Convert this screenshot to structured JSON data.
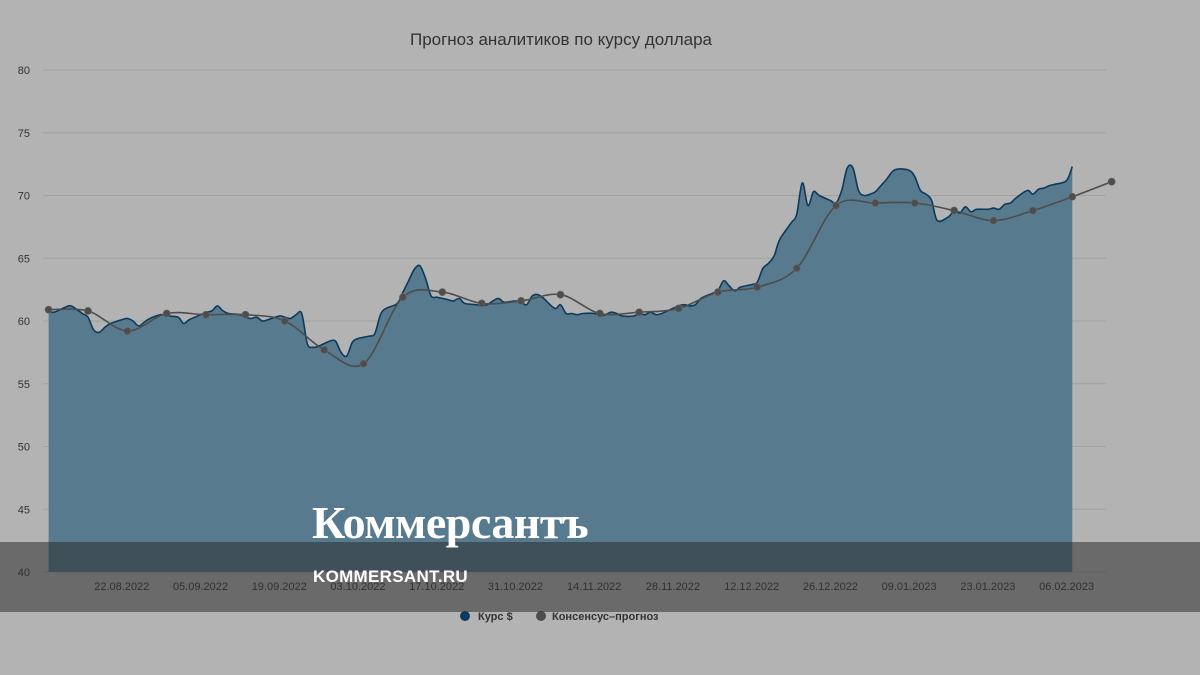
{
  "chart_data": {
    "type": "area",
    "title": "Прогноз аналитиков по курсу доллара",
    "ylim": [
      40,
      80
    ],
    "y_ticks": [
      "40",
      "45",
      "50",
      "55",
      "60",
      "65",
      "70",
      "75",
      "80"
    ],
    "x_range": [
      "2022-08-08",
      "2023-02-13"
    ],
    "x_ticks": [
      {
        "date": "2022-08-22",
        "label": "22.08.2022"
      },
      {
        "date": "2022-09-05",
        "label": "05.09.2022"
      },
      {
        "date": "2022-09-19",
        "label": "19.09.2022"
      },
      {
        "date": "2022-10-03",
        "label": "03.10.2022"
      },
      {
        "date": "2022-10-17",
        "label": "17.10.2022"
      },
      {
        "date": "2022-10-31",
        "label": "31.10.2022"
      },
      {
        "date": "2022-11-14",
        "label": "14.11.2022"
      },
      {
        "date": "2022-11-28",
        "label": "28.11.2022"
      },
      {
        "date": "2022-12-12",
        "label": "12.12.2022"
      },
      {
        "date": "2022-12-26",
        "label": "26.12.2022"
      },
      {
        "date": "2023-01-09",
        "label": "09.01.2023"
      },
      {
        "date": "2023-01-23",
        "label": "23.01.2023"
      },
      {
        "date": "2023-02-06",
        "label": "06.02.2023"
      }
    ],
    "grid": true,
    "legend_position": "bottom-center",
    "series": [
      {
        "name": "Курс $",
        "kind": "area",
        "color": "#0b3a5c",
        "fill": "#587a8e",
        "points": [
          [
            "2022-08-09",
            60.7
          ],
          [
            "2022-08-10",
            60.7
          ],
          [
            "2022-08-11",
            60.9
          ],
          [
            "2022-08-12",
            61.1
          ],
          [
            "2022-08-13",
            61.2
          ],
          [
            "2022-08-15",
            60.6
          ],
          [
            "2022-08-16",
            60.3
          ],
          [
            "2022-08-17",
            59.3
          ],
          [
            "2022-08-18",
            59.1
          ],
          [
            "2022-08-19",
            59.5
          ],
          [
            "2022-08-20",
            59.8
          ],
          [
            "2022-08-22",
            60.1
          ],
          [
            "2022-08-23",
            60.2
          ],
          [
            "2022-08-24",
            60.0
          ],
          [
            "2022-08-25",
            59.6
          ],
          [
            "2022-08-26",
            59.9
          ],
          [
            "2022-08-27",
            60.2
          ],
          [
            "2022-08-29",
            60.5
          ],
          [
            "2022-08-30",
            60.4
          ],
          [
            "2022-09-01",
            60.3
          ],
          [
            "2022-09-02",
            59.8
          ],
          [
            "2022-09-03",
            60.1
          ],
          [
            "2022-09-05",
            60.5
          ],
          [
            "2022-09-06",
            60.7
          ],
          [
            "2022-09-07",
            60.8
          ],
          [
            "2022-09-08",
            61.2
          ],
          [
            "2022-09-09",
            60.8
          ],
          [
            "2022-09-10",
            60.6
          ],
          [
            "2022-09-12",
            60.5
          ],
          [
            "2022-09-13",
            60.3
          ],
          [
            "2022-09-14",
            60.2
          ],
          [
            "2022-09-15",
            60.3
          ],
          [
            "2022-09-16",
            60.0
          ],
          [
            "2022-09-17",
            60.1
          ],
          [
            "2022-09-19",
            60.4
          ],
          [
            "2022-09-20",
            60.3
          ],
          [
            "2022-09-21",
            60.2
          ],
          [
            "2022-09-22",
            60.5
          ],
          [
            "2022-09-23",
            60.6
          ],
          [
            "2022-09-24",
            58.2
          ],
          [
            "2022-09-25",
            57.9
          ],
          [
            "2022-09-26",
            58.0
          ],
          [
            "2022-09-27",
            58.2
          ],
          [
            "2022-09-28",
            58.4
          ],
          [
            "2022-09-29",
            58.4
          ],
          [
            "2022-09-30",
            57.5
          ],
          [
            "2022-10-01",
            57.2
          ],
          [
            "2022-10-02",
            58.3
          ],
          [
            "2022-10-03",
            58.6
          ],
          [
            "2022-10-04",
            58.7
          ],
          [
            "2022-10-05",
            58.8
          ],
          [
            "2022-10-06",
            59.0
          ],
          [
            "2022-10-07",
            60.5
          ],
          [
            "2022-10-08",
            61.0
          ],
          [
            "2022-10-10",
            61.4
          ],
          [
            "2022-10-11",
            62.3
          ],
          [
            "2022-10-12",
            63.2
          ],
          [
            "2022-10-13",
            64.1
          ],
          [
            "2022-10-14",
            64.4
          ],
          [
            "2022-10-15",
            63.4
          ],
          [
            "2022-10-16",
            62.0
          ],
          [
            "2022-10-17",
            61.9
          ],
          [
            "2022-10-18",
            61.8
          ],
          [
            "2022-10-19",
            61.7
          ],
          [
            "2022-10-20",
            61.6
          ],
          [
            "2022-10-21",
            61.8
          ],
          [
            "2022-10-22",
            61.4
          ],
          [
            "2022-10-24",
            61.3
          ],
          [
            "2022-10-25",
            61.2
          ],
          [
            "2022-10-26",
            61.3
          ],
          [
            "2022-10-27",
            61.6
          ],
          [
            "2022-10-28",
            61.8
          ],
          [
            "2022-10-29",
            61.5
          ],
          [
            "2022-10-31",
            61.6
          ],
          [
            "2022-11-01",
            61.5
          ],
          [
            "2022-11-02",
            61.3
          ],
          [
            "2022-11-03",
            62.0
          ],
          [
            "2022-11-04",
            62.1
          ],
          [
            "2022-11-05",
            61.8
          ],
          [
            "2022-11-07",
            61.0
          ],
          [
            "2022-11-08",
            61.3
          ],
          [
            "2022-11-09",
            60.6
          ],
          [
            "2022-11-10",
            60.6
          ],
          [
            "2022-11-11",
            60.5
          ],
          [
            "2022-11-12",
            60.6
          ],
          [
            "2022-11-14",
            60.6
          ],
          [
            "2022-11-15",
            60.4
          ],
          [
            "2022-11-16",
            60.5
          ],
          [
            "2022-11-17",
            60.7
          ],
          [
            "2022-11-18",
            60.6
          ],
          [
            "2022-11-19",
            60.4
          ],
          [
            "2022-11-21",
            60.4
          ],
          [
            "2022-11-22",
            60.6
          ],
          [
            "2022-11-23",
            60.5
          ],
          [
            "2022-11-24",
            60.7
          ],
          [
            "2022-11-25",
            60.5
          ],
          [
            "2022-11-26",
            60.6
          ],
          [
            "2022-11-28",
            61.0
          ],
          [
            "2022-11-29",
            61.2
          ],
          [
            "2022-11-30",
            61.3
          ],
          [
            "2022-12-01",
            61.2
          ],
          [
            "2022-12-02",
            61.3
          ],
          [
            "2022-12-03",
            61.8
          ],
          [
            "2022-12-05",
            62.2
          ],
          [
            "2022-12-06",
            62.4
          ],
          [
            "2022-12-07",
            63.2
          ],
          [
            "2022-12-08",
            62.8
          ],
          [
            "2022-12-09",
            62.4
          ],
          [
            "2022-12-10",
            62.7
          ],
          [
            "2022-12-12",
            62.9
          ],
          [
            "2022-12-13",
            63.1
          ],
          [
            "2022-12-14",
            64.2
          ],
          [
            "2022-12-15",
            64.6
          ],
          [
            "2022-12-16",
            65.2
          ],
          [
            "2022-12-17",
            66.5
          ],
          [
            "2022-12-19",
            67.8
          ],
          [
            "2022-12-20",
            68.5
          ],
          [
            "2022-12-21",
            71.0
          ],
          [
            "2022-12-22",
            69.2
          ],
          [
            "2022-12-23",
            70.3
          ],
          [
            "2022-12-24",
            70.0
          ],
          [
            "2022-12-26",
            69.6
          ],
          [
            "2022-12-27",
            69.4
          ],
          [
            "2022-12-28",
            70.4
          ],
          [
            "2022-12-29",
            72.2
          ],
          [
            "2022-12-30",
            72.2
          ],
          [
            "2022-12-31",
            70.4
          ],
          [
            "2023-01-01",
            70.0
          ],
          [
            "2023-01-02",
            70.1
          ],
          [
            "2023-01-03",
            70.3
          ],
          [
            "2023-01-04",
            70.8
          ],
          [
            "2023-01-05",
            71.3
          ],
          [
            "2023-01-06",
            71.9
          ],
          [
            "2023-01-07",
            72.1
          ],
          [
            "2023-01-09",
            72.0
          ],
          [
            "2023-01-10",
            71.5
          ],
          [
            "2023-01-11",
            70.4
          ],
          [
            "2023-01-12",
            70.1
          ],
          [
            "2023-01-13",
            69.6
          ],
          [
            "2023-01-14",
            68.0
          ],
          [
            "2023-01-16",
            68.3
          ],
          [
            "2023-01-17",
            68.8
          ],
          [
            "2023-01-18",
            68.6
          ],
          [
            "2023-01-19",
            69.1
          ],
          [
            "2023-01-20",
            68.7
          ],
          [
            "2023-01-21",
            68.9
          ],
          [
            "2023-01-23",
            68.9
          ],
          [
            "2023-01-24",
            69.0
          ],
          [
            "2023-01-25",
            68.9
          ],
          [
            "2023-01-26",
            69.3
          ],
          [
            "2023-01-27",
            69.4
          ],
          [
            "2023-01-28",
            69.8
          ],
          [
            "2023-01-30",
            70.4
          ],
          [
            "2023-01-31",
            70.1
          ],
          [
            "2023-02-01",
            70.5
          ],
          [
            "2023-02-02",
            70.6
          ],
          [
            "2023-02-03",
            70.8
          ],
          [
            "2023-02-04",
            70.9
          ],
          [
            "2023-02-06",
            71.2
          ],
          [
            "2023-02-07",
            72.3
          ]
        ]
      },
      {
        "name": "Консенсус–прогноз",
        "kind": "line",
        "color": "#4d4d4d",
        "points": [
          [
            "2022-08-09",
            60.9
          ],
          [
            "2022-08-16",
            60.8
          ],
          [
            "2022-08-23",
            59.2
          ],
          [
            "2022-08-30",
            60.6
          ],
          [
            "2022-09-06",
            60.5
          ],
          [
            "2022-09-13",
            60.5
          ],
          [
            "2022-09-20",
            60.0
          ],
          [
            "2022-09-27",
            57.7
          ],
          [
            "2022-10-04",
            56.6
          ],
          [
            "2022-10-11",
            61.9
          ],
          [
            "2022-10-18",
            62.3
          ],
          [
            "2022-10-25",
            61.4
          ],
          [
            "2022-11-01",
            61.6
          ],
          [
            "2022-11-08",
            62.1
          ],
          [
            "2022-11-15",
            60.6
          ],
          [
            "2022-11-22",
            60.7
          ],
          [
            "2022-11-29",
            61.0
          ],
          [
            "2022-12-06",
            62.3
          ],
          [
            "2022-12-13",
            62.7
          ],
          [
            "2022-12-20",
            64.2
          ],
          [
            "2022-12-27",
            69.2
          ],
          [
            "2023-01-03",
            69.4
          ],
          [
            "2023-01-10",
            69.4
          ],
          [
            "2023-01-17",
            68.8
          ],
          [
            "2023-01-24",
            68.0
          ],
          [
            "2023-01-31",
            68.8
          ],
          [
            "2023-02-07",
            69.9
          ],
          [
            "2023-02-14",
            71.1
          ]
        ]
      }
    ]
  },
  "watermark": {
    "logo": "Коммерсантъ",
    "url": "KOMMERSANT.RU"
  }
}
